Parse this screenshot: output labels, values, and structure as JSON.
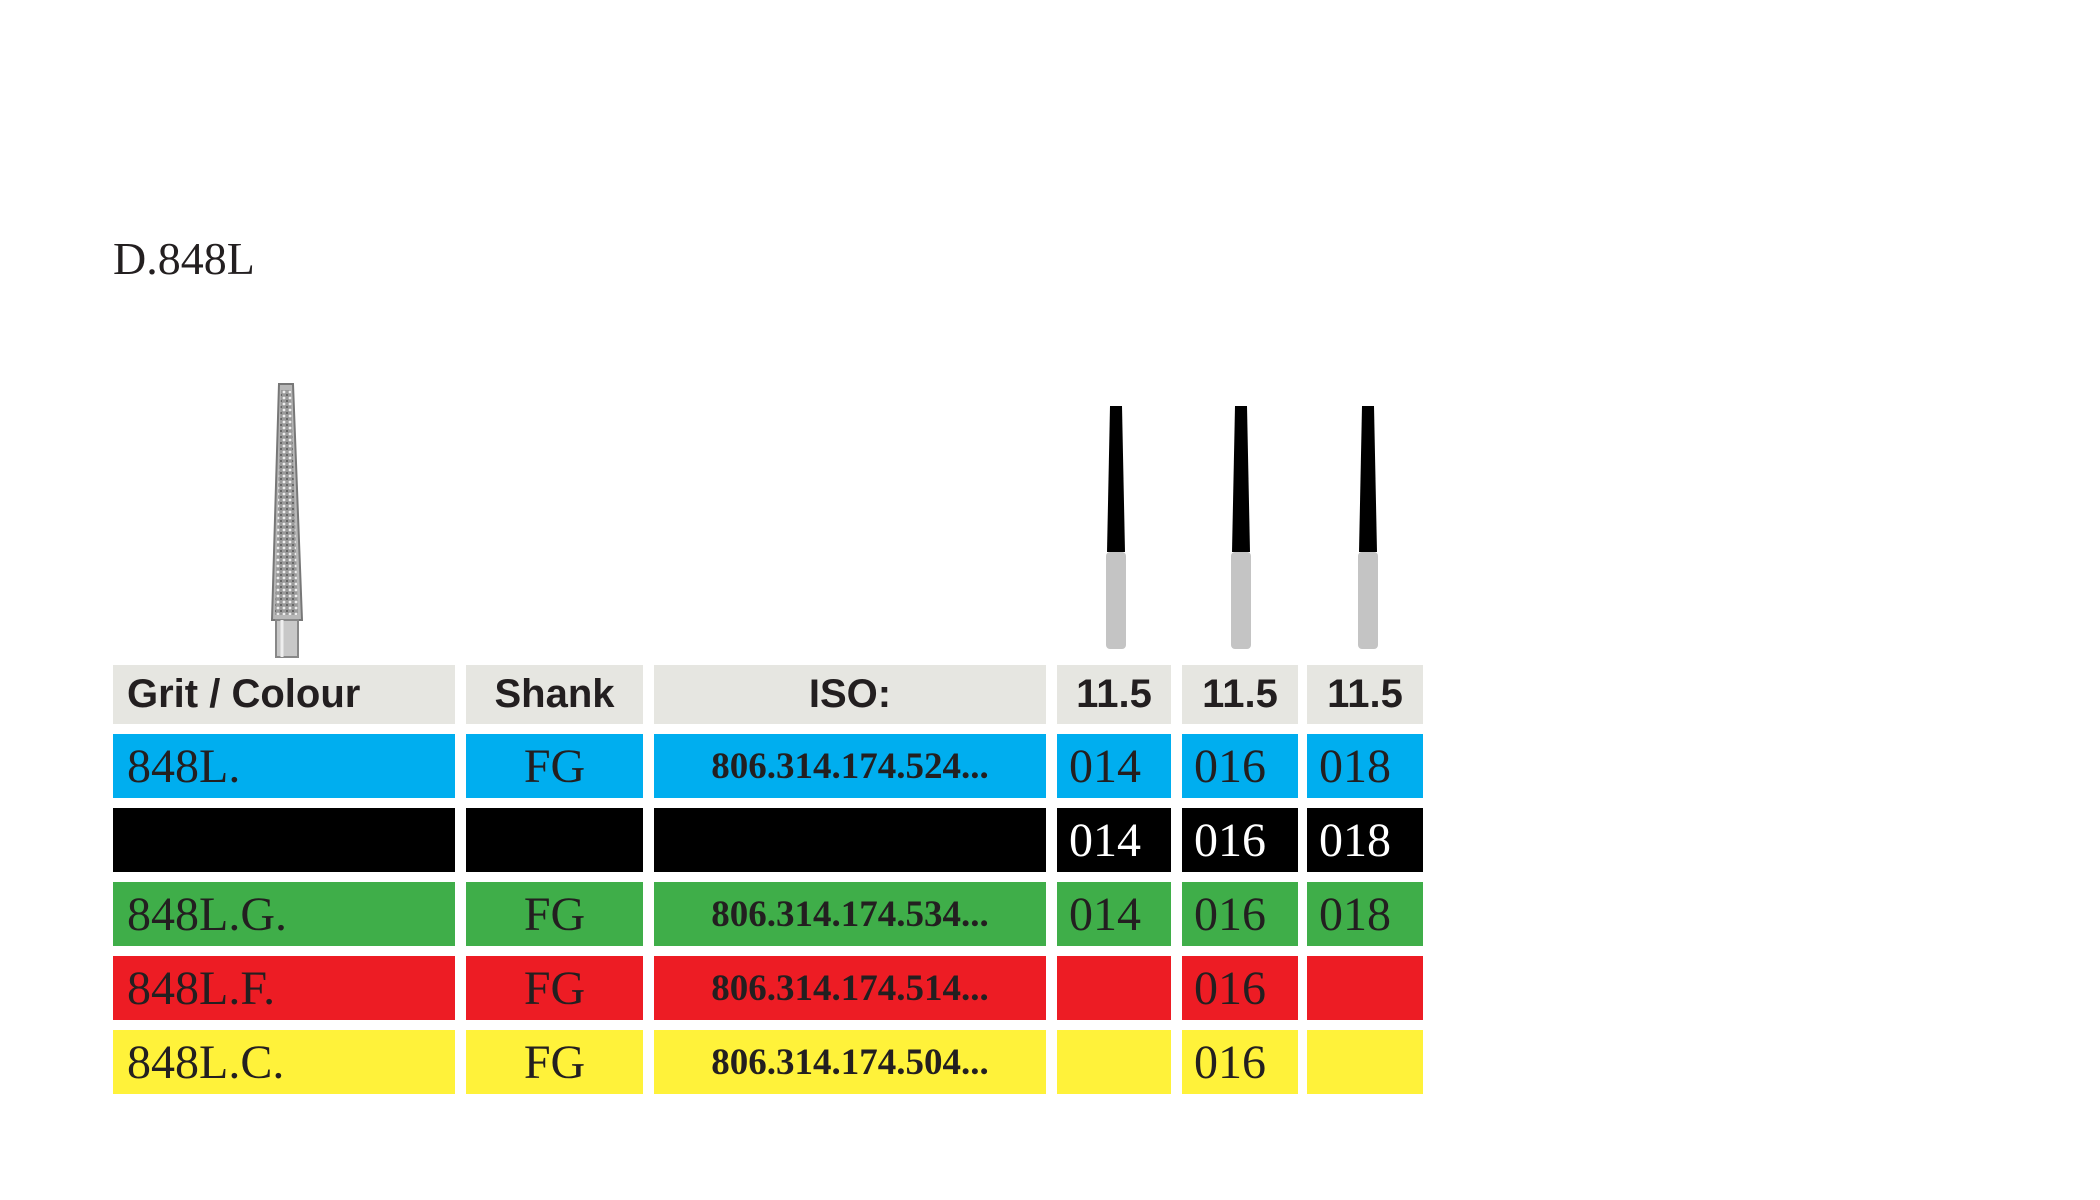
{
  "title": "D.848L",
  "table": {
    "header": [
      "Grit / Colour",
      "Shank",
      "ISO:",
      "11.5",
      "11.5",
      "11.5"
    ],
    "header_color": "#e6e6e1",
    "rows": [
      {
        "color": "#00aeef",
        "text_color": "#231f20",
        "cells": [
          "848L.",
          "FG",
          "806.314.174.524...",
          "014",
          "016",
          "018"
        ]
      },
      {
        "color": "#000000",
        "text_color": "#ffffff",
        "cells": [
          null,
          null,
          null,
          "014",
          "016",
          "018"
        ]
      },
      {
        "color": "#3fae49",
        "text_color": "#231f20",
        "cells": [
          "848L.G.",
          "FG",
          "806.314.174.534...",
          "014",
          "016",
          "018"
        ]
      },
      {
        "color": "#ed1c24",
        "text_color": "#231f20",
        "cells": [
          "848L.F.",
          "FG",
          "806.314.174.514...",
          null,
          "016",
          null
        ]
      },
      {
        "color": "#fff23a",
        "text_color": "#231f20",
        "cells": [
          "848L.C.",
          "FG",
          "806.314.174.504...",
          null,
          "016",
          null
        ]
      }
    ]
  }
}
